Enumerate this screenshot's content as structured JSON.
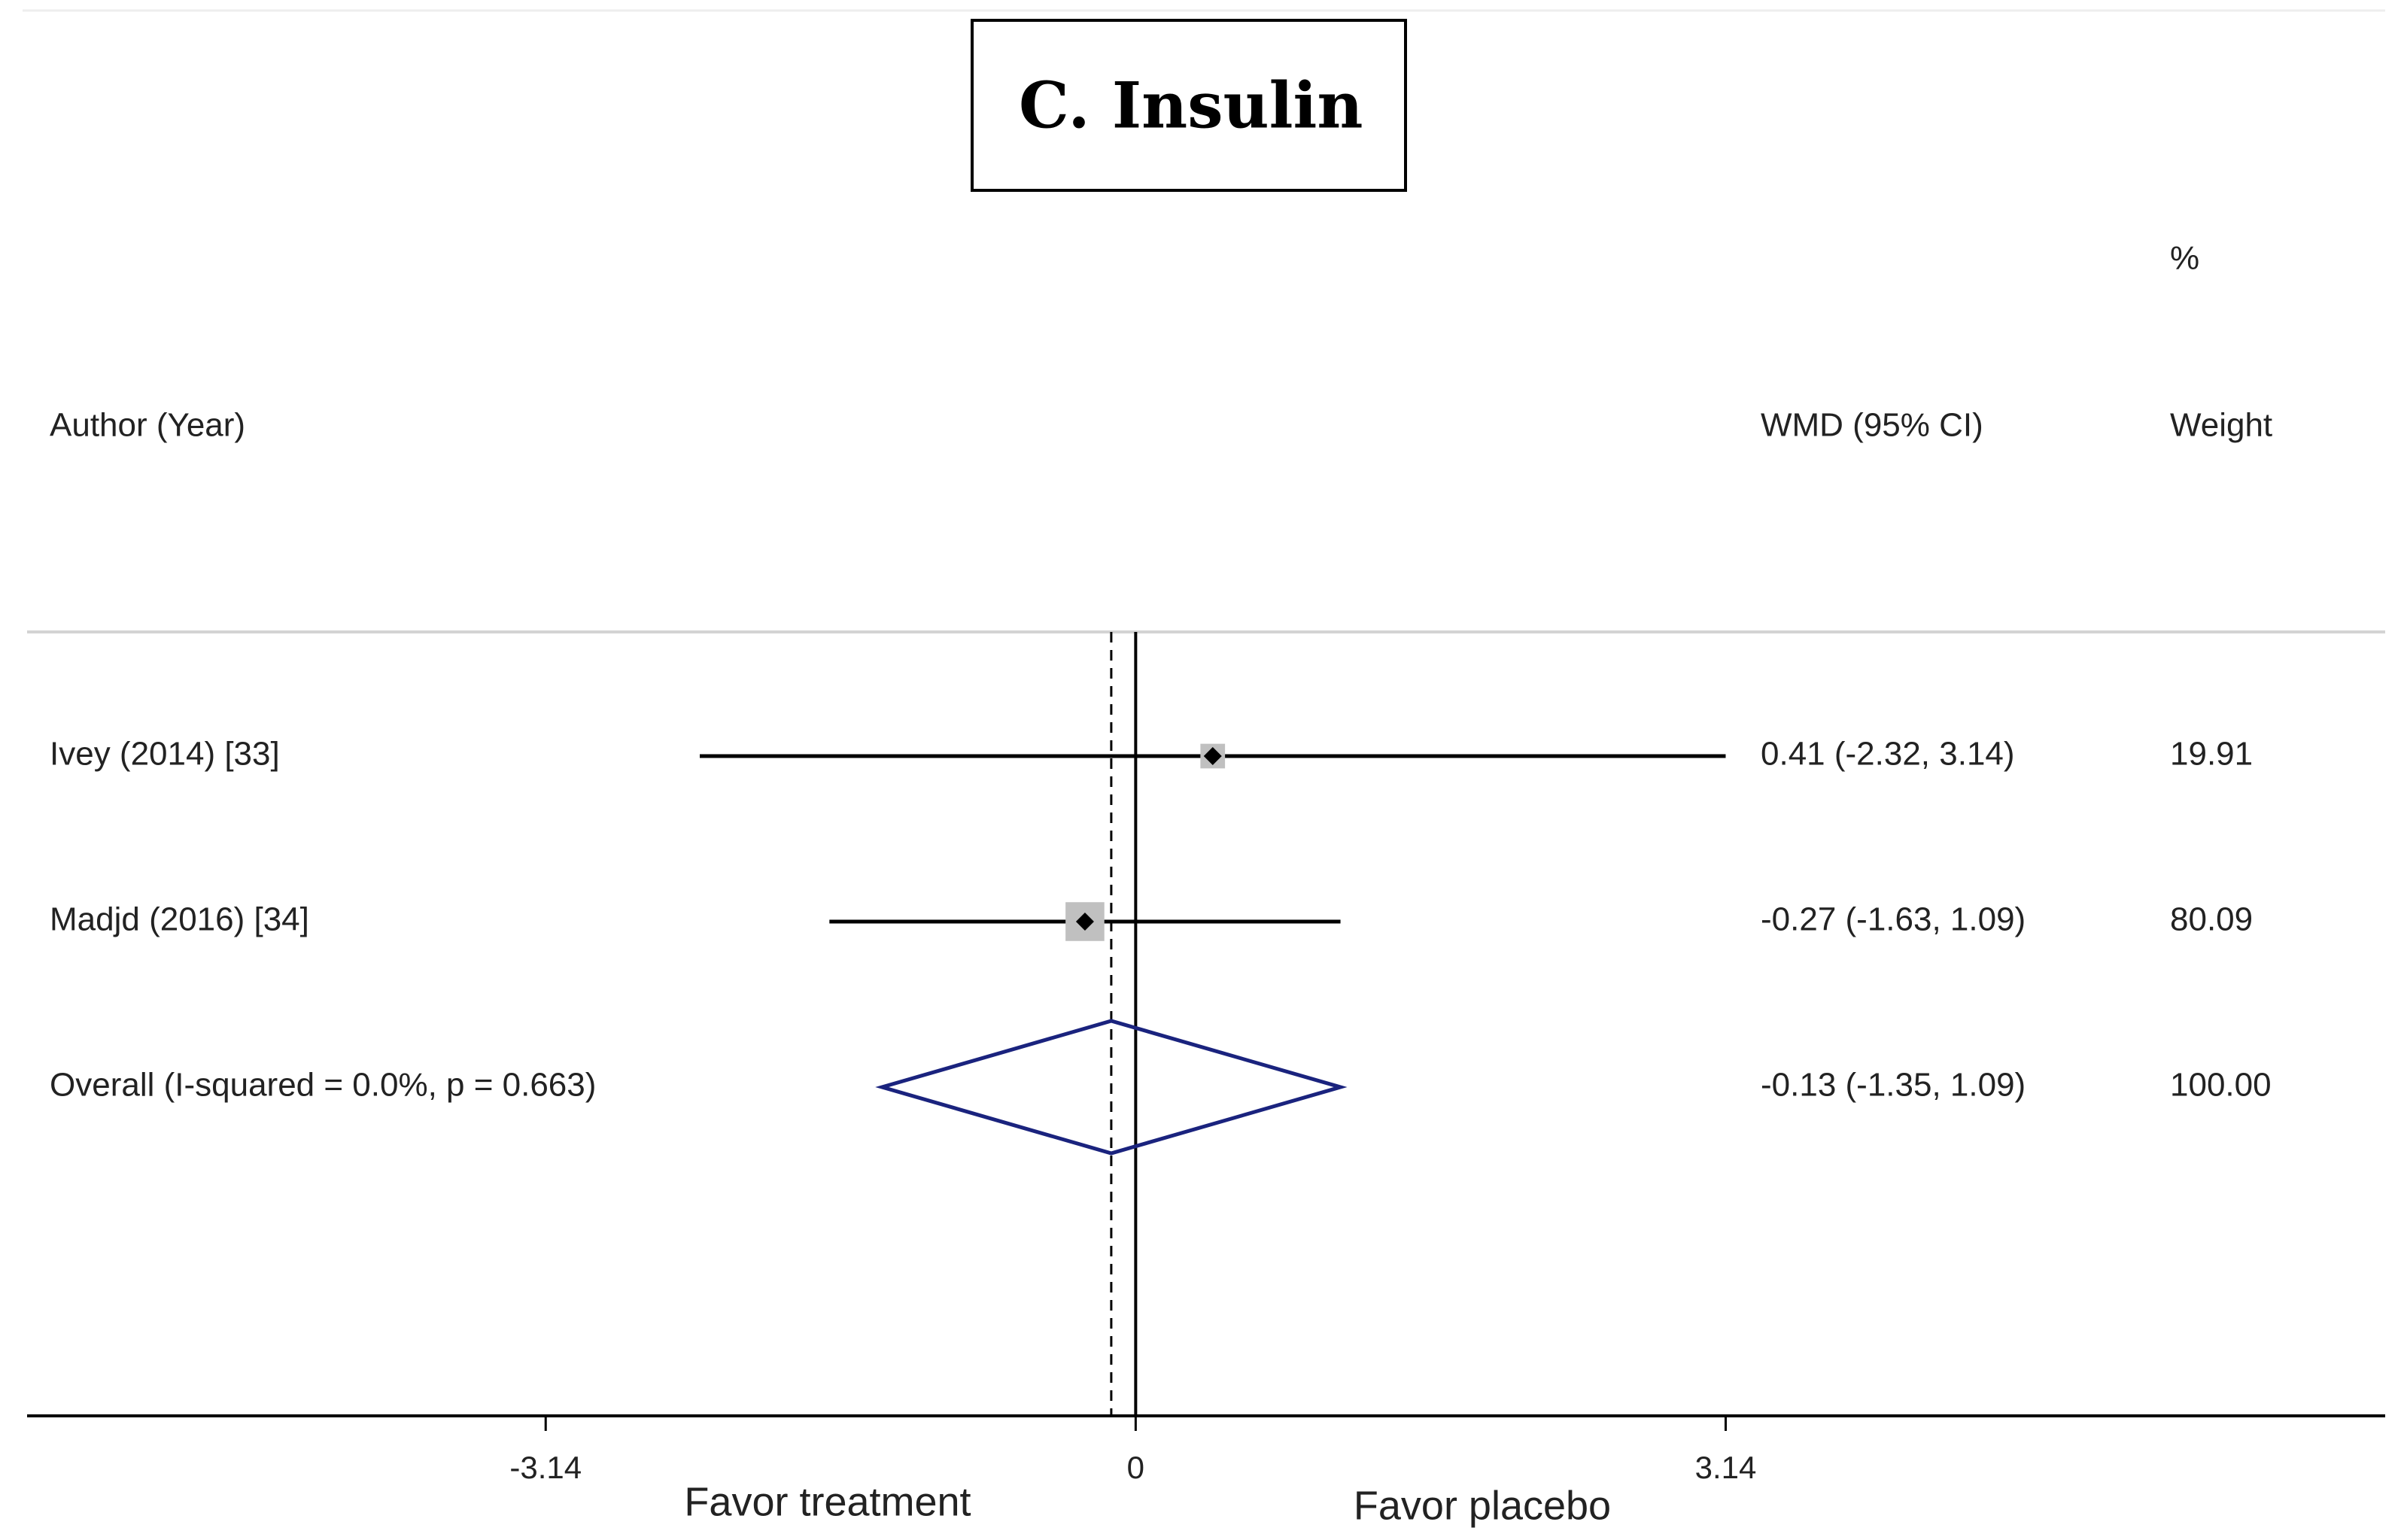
{
  "chart_data": {
    "type": "forest",
    "title": "C. Insulin",
    "headers": {
      "study": "Author (Year)",
      "effect": "WMD (95% CI)",
      "weight_pct": "%",
      "weight": "Weight"
    },
    "studies": [
      {
        "label": "Ivey (2014) [33]",
        "estimate": 0.41,
        "lower": -2.32,
        "upper": 3.14,
        "effect_text": "0.41 (-2.32, 3.14)",
        "weight": 19.91,
        "weight_text": "19.91"
      },
      {
        "label": "Madjd (2016) [34]",
        "estimate": -0.27,
        "lower": -1.63,
        "upper": 1.09,
        "effect_text": "-0.27 (-1.63, 1.09)",
        "weight": 80.09,
        "weight_text": "80.09"
      }
    ],
    "overall": {
      "label": "Overall  (I-squared = 0.0%, p = 0.663)",
      "estimate": -0.13,
      "lower": -1.35,
      "upper": 1.09,
      "effect_text": "-0.13 (-1.35, 1.09)",
      "weight_text": "100.00"
    },
    "xaxis": {
      "ticks": [
        -3.14,
        0,
        3.14
      ],
      "tick_labels": [
        "-3.14",
        "0",
        "3.14"
      ],
      "xlim": [
        -5.9,
        6.65
      ],
      "left_label": "Favor treatment",
      "right_label": "Favor placebo"
    },
    "colors": {
      "diamond": "#1a237e",
      "box": "#c0c0c0",
      "line": "#000000",
      "separator": "#d3d3d3"
    }
  }
}
